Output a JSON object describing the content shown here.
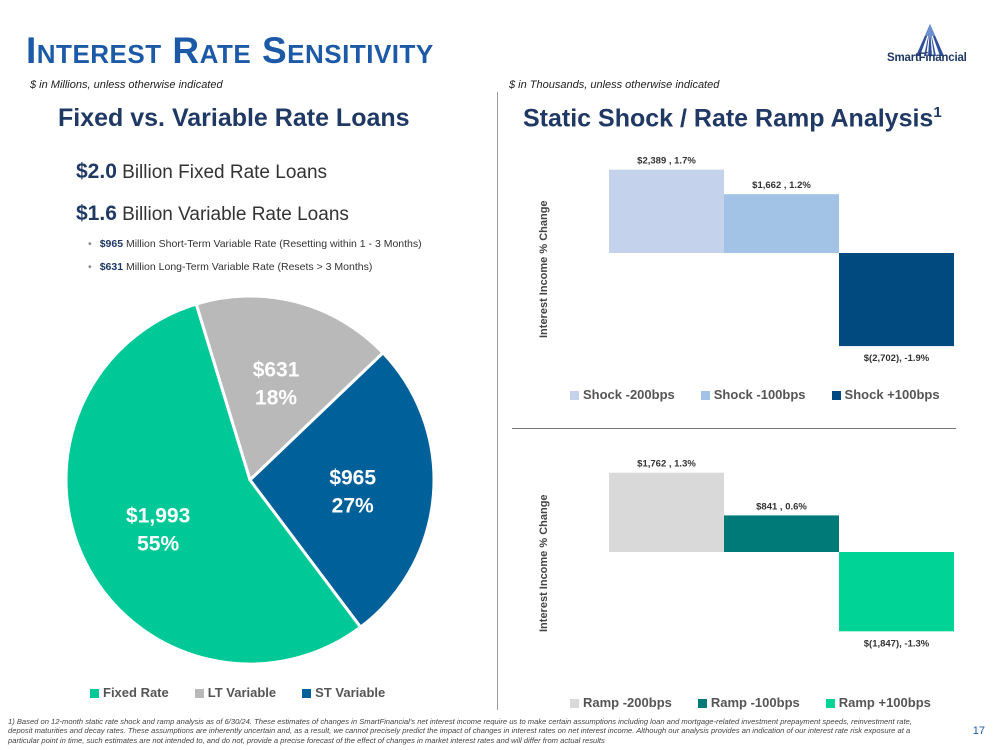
{
  "page": {
    "title": "Interest Rate Sensitivity",
    "left_note": "$ in Millions, unless otherwise indicated",
    "right_note": "$ in Thousands, unless otherwise indicated",
    "logo_text": "SmartFinancial",
    "page_number": "17",
    "footnote": "1)  Based on 12-month static rate shock and ramp analysis as of 6/30/24. These estimates of changes in SmartFinancial's net interest income require us to make certain assumptions including loan and mortgage-related investment prepayment speeds, reinvestment rate, deposit maturities and decay rates. These assumptions are inherently uncertain and, as a result, we cannot precisely predict the impact of changes in interest rates on net interest income. Although our analysis provides an indication of our interest rate risk exposure at a particular point in time, such estimates are not intended to, and do not, provide a precise forecast of the effect of changes in market interest rates and will differ from actual results"
  },
  "left": {
    "heading": "Fixed vs. Variable Rate Loans",
    "fixed_amount": "$2.0",
    "fixed_text": "Billion Fixed Rate Loans",
    "variable_amount": "$1.6",
    "variable_text": "Billion Variable Rate Loans",
    "bullets": [
      {
        "amount": "$965",
        "text": "Million Short-Term Variable Rate (Resetting within 1 - 3 Months)"
      },
      {
        "amount": "$631",
        "text": "Million Long-Term Variable Rate (Resets > 3 Months)"
      }
    ]
  },
  "right": {
    "heading": "Static Shock / Rate Ramp Analysis",
    "heading_sup": "1"
  },
  "chart_data": [
    {
      "type": "pie",
      "slices": [
        {
          "name": "Fixed Rate",
          "value": 1993,
          "label": "$1,993",
          "pct_label": "55%",
          "color": "#00c896"
        },
        {
          "name": "LT Variable",
          "value": 631,
          "label": "$631",
          "pct_label": "18%",
          "color": "#b9b9b9"
        },
        {
          "name": "ST Variable",
          "value": 965,
          "label": "$965",
          "pct_label": "27%",
          "color": "#00609a"
        }
      ]
    },
    {
      "type": "bar",
      "ylabel": "Interest Income % Change",
      "categories": [
        "Shock -200bps",
        "Shock -100bps",
        "Shock +100bps"
      ],
      "values": [
        1.7,
        1.2,
        -1.9
      ],
      "data_labels": [
        "$2,389 , 1.7%",
        "$1,662 , 1.2%",
        "$(2,702), -1.9%"
      ],
      "colors": [
        "#c4d2ec",
        "#a2c2e6",
        "#004a80"
      ],
      "ylim": [
        -2.0,
        2.0
      ]
    },
    {
      "type": "bar",
      "ylabel": "Interest Income % Change",
      "categories": [
        "Ramp -200bps",
        "Ramp -100bps",
        "Ramp +100bps"
      ],
      "values": [
        1.3,
        0.6,
        -1.3
      ],
      "data_labels": [
        "$1,762 , 1.3%",
        "$841 , 0.6%",
        "$(1,847), -1.3%"
      ],
      "colors": [
        "#d9d9d9",
        "#007a78",
        "#00d396"
      ],
      "ylim": [
        -1.3,
        1.3
      ]
    }
  ]
}
